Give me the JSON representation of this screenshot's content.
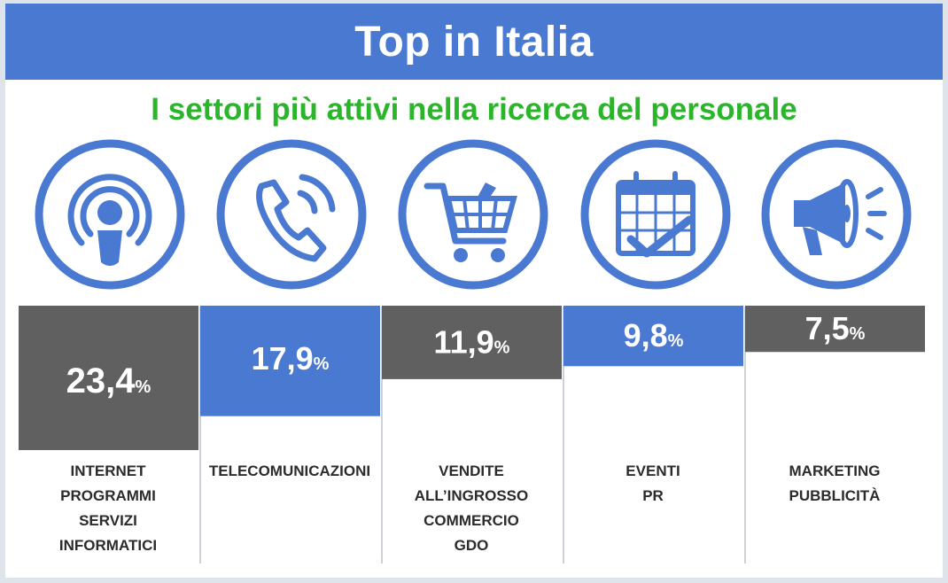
{
  "header": {
    "title": "Top in Italia"
  },
  "subtitle": "I settori più attivi nella ricerca del personale",
  "colors": {
    "header_bg": "#4a79d1",
    "subtitle": "#2bb52b",
    "bar_dark": "#606060",
    "bar_blue": "#4a79d1",
    "icon_stroke": "#4a79d1"
  },
  "chart_data": {
    "type": "bar",
    "categories": [
      [
        "INTERNET",
        "PROGRAMMI",
        "SERVIZI",
        "INFORMATICI"
      ],
      [
        "TELECOMUNICAZIONI"
      ],
      [
        "VENDITE",
        "ALL’INGROSSO",
        "COMMERCIO",
        "GDO"
      ],
      [
        "EVENTI",
        "PR"
      ],
      [
        "MARKETING",
        "PUBBLICITÀ"
      ]
    ],
    "values": [
      23.4,
      17.9,
      11.9,
      9.8,
      7.5
    ],
    "value_labels": [
      "23,4",
      "17,9",
      "11,9",
      "9,8",
      "7,5"
    ],
    "unit": "%",
    "bar_colors": [
      "#606060",
      "#4a79d1",
      "#606060",
      "#4a79d1",
      "#606060"
    ],
    "icons": [
      "broadcast-person-icon",
      "phone-icon",
      "shopping-cart-icon",
      "calendar-check-icon",
      "megaphone-icon"
    ],
    "orientation": "bars hang downward from baseline",
    "ylim": [
      0,
      23.4
    ],
    "grid": false,
    "legend": "none"
  }
}
